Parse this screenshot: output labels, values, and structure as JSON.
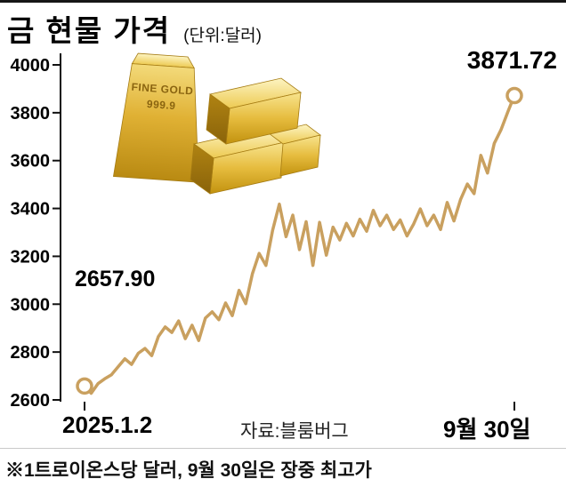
{
  "header": {
    "title": "금 현물 가격",
    "unit": "(단위:달러)"
  },
  "chart_data": {
    "type": "line",
    "title": "금 현물 가격",
    "unit_label": "(단위:달러)",
    "ylim": [
      2600,
      4000
    ],
    "yticks": [
      2600,
      2800,
      3000,
      3200,
      3400,
      3600,
      3800,
      4000
    ],
    "grid": false,
    "line_color": "#c9a05f",
    "x_start_label": "2025.1.2",
    "x_end_label": "9월 30일",
    "source": "자료:블룸버그",
    "point_labels": {
      "start": "2657.90",
      "end": "3871.72"
    },
    "markers": [
      "start",
      "end"
    ],
    "values": [
      2657.9,
      2628,
      2668,
      2688,
      2705,
      2738,
      2772,
      2748,
      2795,
      2815,
      2785,
      2865,
      2905,
      2882,
      2930,
      2856,
      2912,
      2848,
      2942,
      2968,
      2935,
      3005,
      2952,
      3058,
      3002,
      3128,
      3212,
      3162,
      3308,
      3418,
      3282,
      3372,
      3228,
      3345,
      3162,
      3342,
      3205,
      3322,
      3268,
      3338,
      3285,
      3355,
      3305,
      3392,
      3328,
      3372,
      3312,
      3352,
      3285,
      3335,
      3398,
      3328,
      3372,
      3312,
      3425,
      3348,
      3438,
      3502,
      3462,
      3622,
      3548,
      3672,
      3728,
      3802,
      3871.72
    ]
  },
  "illustration": {
    "name": "gold-bars",
    "engraving": [
      "FINE GOLD",
      "999.9"
    ]
  },
  "footer": {
    "note": "※1트로이온스당 달러, 9월 30일은 장중 최고가"
  }
}
